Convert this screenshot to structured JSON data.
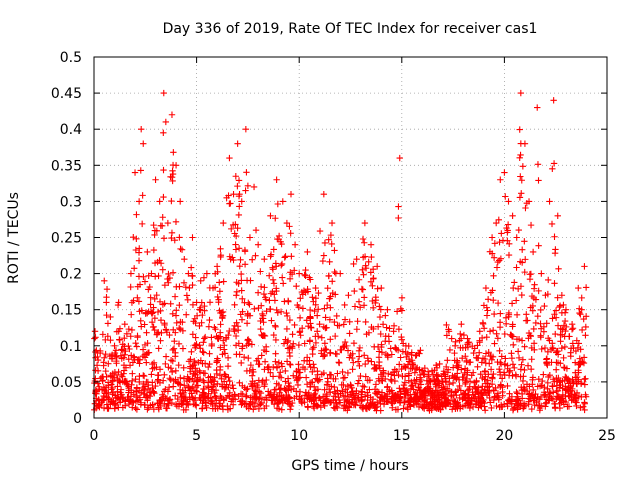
{
  "chart_data": {
    "type": "scatter",
    "title": "Day 336 of 2019, Rate Of TEC Index for receiver cas1",
    "xlabel": "GPS time / hours",
    "ylabel": "ROTI / TECUs",
    "xlim": [
      0,
      25
    ],
    "ylim": [
      0,
      0.5
    ],
    "x_ticks": [
      0,
      5,
      10,
      15,
      20,
      25
    ],
    "y_ticks": [
      0,
      0.05,
      0.1,
      0.15,
      0.2,
      0.25,
      0.3,
      0.35,
      0.4,
      0.45,
      0.5
    ],
    "x_tick_labels": [
      "0",
      "5",
      "10",
      "15",
      "20",
      "25"
    ],
    "y_tick_labels": [
      "0",
      "0.05",
      "0.1",
      "0.15",
      "0.2",
      "0.25",
      "0.3",
      "0.35",
      "0.4",
      "0.45",
      "0.5"
    ],
    "grid": true,
    "marker": "plus",
    "series_color": "#ff0000",
    "series": [
      {
        "x": [
          0.05,
          0.3,
          0.5,
          0.8,
          1.0,
          1.2,
          1.5,
          1.8,
          2.0,
          2.2,
          2.3,
          2.4,
          2.6,
          2.8,
          3.0,
          3.2,
          3.4,
          3.5,
          3.6,
          3.8,
          4.0,
          4.2,
          4.4,
          4.6,
          4.8,
          5.0,
          5.2,
          5.5,
          5.8,
          6.0,
          6.3,
          6.6,
          6.8,
          7.0,
          7.2,
          7.4,
          7.6,
          7.8,
          8.0,
          8.3,
          8.6,
          8.9,
          9.2,
          9.4,
          9.6,
          9.8,
          10.0,
          10.4,
          10.8,
          11.2,
          11.6,
          12.0,
          12.4,
          12.8,
          13.2,
          13.5,
          13.8,
          14.0,
          14.3,
          14.6,
          14.9,
          15.2,
          15.5,
          15.8,
          16.1,
          16.4,
          16.7,
          17.0,
          17.3,
          17.6,
          17.9,
          18.2,
          18.5,
          18.8,
          19.1,
          19.4,
          19.6,
          19.8,
          20.0,
          20.2,
          20.4,
          20.6,
          20.8,
          21.0,
          21.2,
          21.4,
          21.6,
          21.8,
          22.0,
          22.2,
          22.4,
          22.6,
          22.8,
          23.0,
          23.3,
          23.6,
          23.9
        ],
        "y": [
          0.12,
          0.09,
          0.19,
          0.14,
          0.1,
          0.16,
          0.13,
          0.2,
          0.34,
          0.3,
          0.4,
          0.38,
          0.23,
          0.2,
          0.33,
          0.3,
          0.45,
          0.41,
          0.27,
          0.42,
          0.35,
          0.3,
          0.22,
          0.2,
          0.25,
          0.16,
          0.19,
          0.2,
          0.18,
          0.21,
          0.27,
          0.36,
          0.31,
          0.38,
          0.3,
          0.4,
          0.25,
          0.32,
          0.24,
          0.22,
          0.28,
          0.33,
          0.3,
          0.27,
          0.31,
          0.24,
          0.2,
          0.23,
          0.18,
          0.31,
          0.27,
          0.2,
          0.17,
          0.22,
          0.27,
          0.24,
          0.21,
          0.18,
          0.15,
          0.12,
          0.36,
          0.1,
          0.08,
          0.09,
          0.06,
          0.05,
          0.06,
          0.05,
          0.12,
          0.1,
          0.13,
          0.11,
          0.09,
          0.12,
          0.18,
          0.25,
          0.27,
          0.33,
          0.34,
          0.3,
          0.28,
          0.25,
          0.45,
          0.38,
          0.3,
          0.23,
          0.43,
          0.2,
          0.17,
          0.3,
          0.44,
          0.28,
          0.17,
          0.15,
          0.13,
          0.18,
          0.21
        ]
      }
    ]
  }
}
